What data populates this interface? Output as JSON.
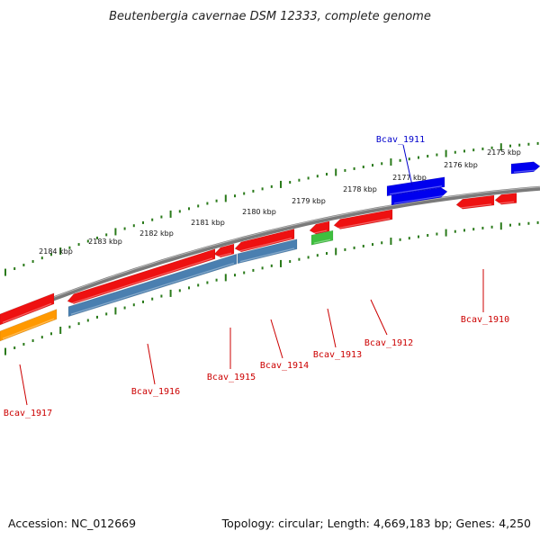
{
  "title": "Beutenbergia cavernae DSM 12333, complete genome",
  "footer": {
    "accession": "Accession: NC_012669",
    "summary": "Topology: circular; Length: 4,669,183 bp; Genes: 4,250"
  },
  "colors": {
    "backbone": "#7a7a7a",
    "tick": "#2a7a1a",
    "forward_gene": "#0000ee",
    "reverse_gene": "#ee1111",
    "rna_gene": "#3fbf3f",
    "orange_gene": "#ff9900",
    "steel_gene": "#4a7fb0",
    "label_forward": "#0000cc",
    "label_reverse": "#cc0000"
  },
  "kbp_labels": [
    "2175 kbp",
    "2176 kbp",
    "2177 kbp",
    "2178 kbp",
    "2179 kbp",
    "2180 kbp",
    "2181 kbp",
    "2182 kbp",
    "2183 kbp",
    "2184 kbp"
  ],
  "gene_labels": [
    {
      "id": "Bcav_1911",
      "strand": "forward"
    },
    {
      "id": "Bcav_1910",
      "strand": "reverse"
    },
    {
      "id": "Bcav_1912",
      "strand": "reverse"
    },
    {
      "id": "Bcav_1913",
      "strand": "reverse"
    },
    {
      "id": "Bcav_1914",
      "strand": "reverse"
    },
    {
      "id": "Bcav_1915",
      "strand": "reverse"
    },
    {
      "id": "Bcav_1916",
      "strand": "reverse"
    },
    {
      "id": "Bcav_1917",
      "strand": "reverse"
    }
  ]
}
